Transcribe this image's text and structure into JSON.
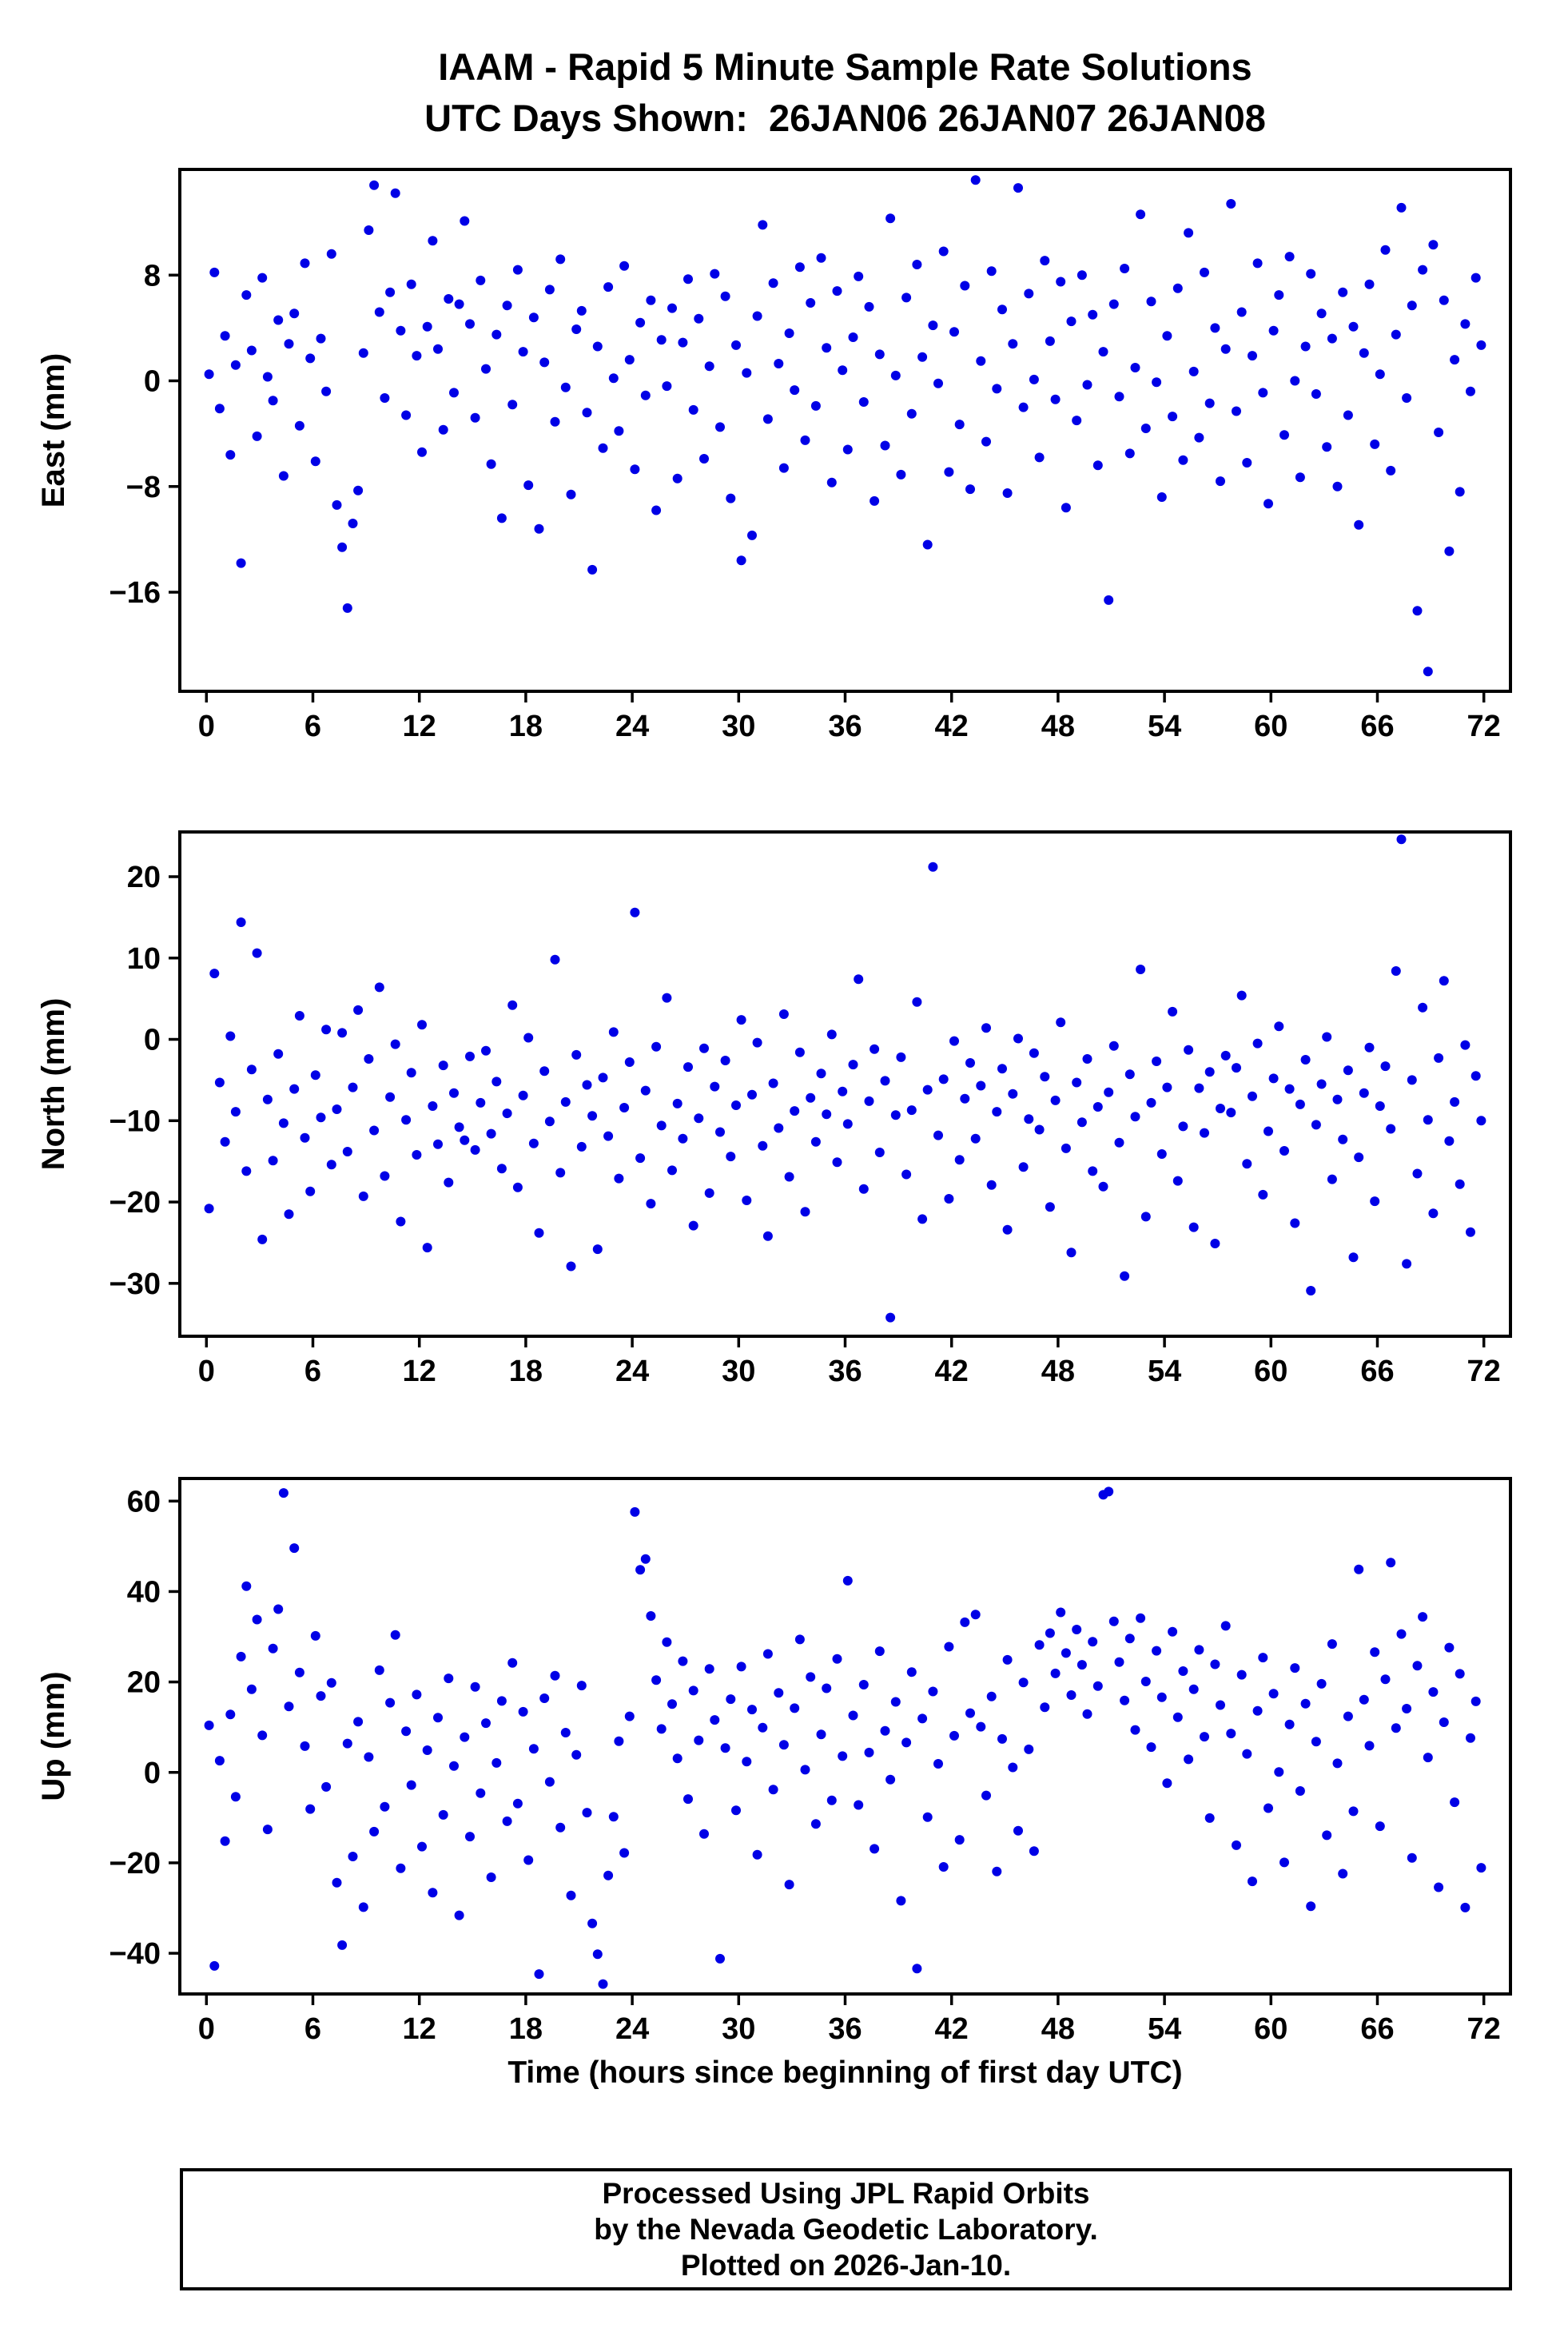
{
  "title": {
    "line1": "IAAM - Rapid 5 Minute Sample Rate Solutions",
    "line2": "UTC Days Shown:  26JAN06 26JAN07 26JAN08"
  },
  "xlabel": "Time (hours since beginning of first day UTC)",
  "footer": {
    "line1": "Processed Using JPL Rapid Orbits",
    "line2": "by the Nevada Geodetic Laboratory.",
    "line3": "Plotted on 2026-Jan-10."
  },
  "colors": {
    "marker": "#0000e6",
    "axis": "#000000",
    "background": "#ffffff"
  },
  "chart_data": [
    {
      "type": "scatter",
      "series_name": "East",
      "ylabel": "East (mm)",
      "ylim": [
        -23.5,
        16
      ],
      "yticks": [
        -16,
        -8,
        0,
        8
      ],
      "xlim": [
        -1.5,
        73.5
      ],
      "xticks": [
        0,
        6,
        12,
        18,
        24,
        30,
        36,
        42,
        48,
        54,
        60,
        66,
        72
      ],
      "grid": false,
      "legend": "none",
      "x_hours": {
        "start": 0.15,
        "step": 0.3,
        "count": 240
      },
      "y": [
        0.5,
        8.2,
        -2.1,
        3.4,
        -5.6,
        1.2,
        -13.8,
        6.5,
        2.3,
        -4.2,
        7.8,
        0.3,
        -1.5,
        4.6,
        -7.2,
        2.8,
        5.1,
        -3.4,
        8.9,
        1.7,
        -6.1,
        3.2,
        -0.8,
        9.6,
        -9.4,
        -12.6,
        -17.2,
        -10.8,
        -8.3,
        2.1,
        11.4,
        14.8,
        5.2,
        -1.3,
        6.7,
        14.2,
        3.8,
        -2.6,
        7.3,
        1.9,
        -5.4,
        4.1,
        10.6,
        2.4,
        -3.7,
        6.2,
        -0.9,
        5.8,
        12.1,
        4.3,
        -2.8,
        7.6,
        0.9,
        -6.3,
        3.5,
        -10.4,
        5.7,
        -1.8,
        8.4,
        2.2,
        -7.9,
        4.8,
        -11.2,
        1.4,
        6.9,
        -3.1,
        9.2,
        -0.5,
        -8.6,
        3.9,
        5.3,
        -2.4,
        -14.3,
        2.6,
        -5.1,
        7.1,
        0.2,
        -3.8,
        8.7,
        1.6,
        -6.7,
        4.4,
        -1.1,
        6.1,
        -9.8,
        3.1,
        -0.4,
        5.5,
        -7.4,
        2.9,
        7.7,
        -2.2,
        4.7,
        -5.9,
        1.1,
        8.1,
        -3.5,
        6.4,
        -8.9,
        2.7,
        -13.6,
        0.6,
        -11.7,
        4.9,
        11.8,
        -2.9,
        7.4,
        1.3,
        -6.6,
        3.6,
        -0.7,
        8.6,
        -4.5,
        5.9,
        -1.9,
        9.3,
        2.5,
        -7.7,
        6.8,
        0.8,
        -5.2,
        3.3,
        7.9,
        -1.6,
        5.6,
        -9.1,
        2.0,
        -4.9,
        12.3,
        0.4,
        -7.1,
        6.3,
        -2.5,
        8.8,
        1.8,
        -12.4,
        4.2,
        -0.2,
        9.8,
        -6.9,
        3.7,
        -3.3,
        7.2,
        -8.2,
        15.2,
        1.5,
        -4.6,
        8.3,
        -0.6,
        5.4,
        -8.5,
        2.8,
        14.6,
        -2.0,
        6.6,
        0.1,
        -5.8,
        9.1,
        3.0,
        -1.4,
        7.5,
        -9.6,
        4.5,
        -3.0,
        8.0,
        -0.3,
        5.0,
        -6.4,
        2.2,
        -16.6,
        5.8,
        -1.2,
        8.5,
        -5.5,
        1.0,
        12.6,
        -3.6,
        6.0,
        -0.1,
        -8.8,
        3.4,
        -2.7,
        7.0,
        -6.0,
        11.2,
        0.7,
        -4.3,
        8.2,
        -1.7,
        4.0,
        -7.6,
        2.4,
        13.4,
        -2.3,
        5.2,
        -6.2,
        1.9,
        8.9,
        -0.9,
        -9.3,
        3.8,
        6.5,
        -4.1,
        9.4,
        0.0,
        -7.3,
        2.6,
        8.1,
        -1.0,
        5.1,
        -5.0,
        3.2,
        -8.0,
        6.7,
        -2.6,
        4.1,
        -10.9,
        2.1,
        7.3,
        -4.8,
        0.5,
        9.9,
        -6.8,
        3.5,
        13.1,
        -1.3,
        5.7,
        -17.4,
        8.4,
        -22.0,
        10.3,
        -3.9,
        6.1,
        -12.9,
        1.6,
        -8.4,
        4.3,
        -0.8,
        7.8,
        2.7
      ]
    },
    {
      "type": "scatter",
      "series_name": "North",
      "ylabel": "North (mm)",
      "ylim": [
        -36.5,
        25.5
      ],
      "yticks": [
        -30,
        -20,
        -10,
        0,
        10,
        20
      ],
      "xlim": [
        -1.5,
        73.5
      ],
      "xticks": [
        0,
        6,
        12,
        18,
        24,
        30,
        36,
        42,
        48,
        54,
        60,
        66,
        72
      ],
      "grid": false,
      "legend": "none",
      "x_hours": {
        "start": 0.15,
        "step": 0.3,
        "count": 240
      },
      "y": [
        -20.8,
        8.1,
        -5.3,
        -12.6,
        0.4,
        -8.9,
        14.4,
        -16.2,
        -3.7,
        10.6,
        -24.6,
        -7.4,
        -14.9,
        -1.8,
        -10.3,
        -21.5,
        -6.1,
        2.9,
        -12.1,
        -18.7,
        -4.4,
        -9.6,
        1.2,
        -15.4,
        -8.6,
        0.8,
        -13.8,
        -5.9,
        3.6,
        -19.3,
        -2.4,
        -11.2,
        6.4,
        -16.8,
        -7.1,
        -0.6,
        -22.4,
        -9.9,
        -4.1,
        -14.2,
        1.8,
        -25.6,
        -8.2,
        -12.9,
        -3.2,
        -17.6,
        -6.6,
        -10.8,
        -12.4,
        -2.1,
        -13.6,
        -7.8,
        -1.4,
        -11.6,
        -5.2,
        -15.9,
        -9.1,
        4.2,
        -18.2,
        -6.9,
        0.2,
        -12.8,
        -23.8,
        -3.9,
        -10.1,
        9.8,
        -16.4,
        -7.7,
        -27.9,
        -1.9,
        -13.2,
        -5.6,
        -9.4,
        -25.8,
        -4.7,
        -11.9,
        0.9,
        -17.1,
        -8.4,
        -2.8,
        15.6,
        -14.6,
        -6.3,
        -20.2,
        -0.9,
        -10.6,
        5.1,
        -16.1,
        -7.9,
        -12.2,
        -3.4,
        -22.9,
        -9.7,
        -1.1,
        -18.9,
        -5.8,
        -11.4,
        -2.6,
        -14.4,
        -8.1,
        2.4,
        -19.8,
        -6.8,
        -0.4,
        -13.1,
        -24.2,
        -5.4,
        -10.9,
        3.1,
        -16.9,
        -8.8,
        -1.6,
        -21.2,
        -7.2,
        -12.6,
        -4.2,
        -9.2,
        0.6,
        -15.1,
        -6.4,
        -10.4,
        -3.1,
        7.4,
        -18.4,
        -7.6,
        -1.2,
        -13.9,
        -5.1,
        -34.2,
        -9.3,
        -2.2,
        -16.6,
        -8.7,
        4.6,
        -22.1,
        -6.2,
        21.2,
        -11.8,
        -4.9,
        -19.6,
        -0.2,
        -14.8,
        -7.3,
        -2.9,
        -12.2,
        -5.7,
        1.4,
        -17.9,
        -8.9,
        -3.6,
        -23.4,
        -6.7,
        0.1,
        -15.7,
        -9.8,
        -1.7,
        -11.1,
        -4.6,
        -20.6,
        -7.5,
        2.1,
        -13.4,
        -26.2,
        -5.3,
        -10.2,
        -2.4,
        -16.2,
        -8.3,
        -18.1,
        -6.5,
        -0.8,
        -12.7,
        -29.1,
        -4.3,
        -9.5,
        8.6,
        -21.8,
        -7.8,
        -2.7,
        -14.1,
        -5.9,
        3.4,
        -17.4,
        -10.7,
        -1.3,
        -23.1,
        -6.0,
        -11.5,
        -4.0,
        -25.1,
        -8.5,
        -2.0,
        -9.0,
        -3.5,
        5.4,
        -15.3,
        -7.0,
        -0.5,
        -19.1,
        -11.3,
        -4.8,
        1.6,
        -13.7,
        -6.1,
        -22.6,
        -8.0,
        -2.5,
        -30.9,
        -10.5,
        -5.5,
        0.3,
        -17.2,
        -7.4,
        -12.3,
        -3.8,
        -26.8,
        -14.5,
        -6.6,
        -1.0,
        -19.9,
        -8.2,
        -3.3,
        -11.0,
        8.4,
        24.6,
        -27.6,
        -5.0,
        -16.5,
        3.9,
        -9.9,
        -21.4,
        -2.3,
        7.2,
        -12.5,
        -7.7,
        -17.8,
        -0.7,
        -23.7,
        -4.5,
        -10.0
      ]
    },
    {
      "type": "scatter",
      "series_name": "Up",
      "ylabel": "Up (mm)",
      "ylim": [
        -49,
        65
      ],
      "yticks": [
        -40,
        -20,
        0,
        20,
        40,
        60
      ],
      "xlim": [
        -1.5,
        73.5
      ],
      "xticks": [
        0,
        6,
        12,
        18,
        24,
        30,
        36,
        42,
        48,
        54,
        60,
        66,
        72
      ],
      "grid": false,
      "legend": "none",
      "x_hours": {
        "start": 0.15,
        "step": 0.3,
        "count": 240
      },
      "y": [
        10.4,
        -42.8,
        2.6,
        -15.2,
        12.8,
        -5.4,
        25.6,
        41.2,
        18.4,
        33.8,
        8.2,
        -12.6,
        27.4,
        36.1,
        61.8,
        14.6,
        49.6,
        22.1,
        5.8,
        -8.1,
        30.2,
        16.9,
        -3.2,
        19.8,
        -24.4,
        -38.2,
        6.4,
        -18.6,
        11.2,
        -29.8,
        3.4,
        -13.1,
        22.6,
        -7.6,
        15.4,
        30.4,
        -21.2,
        9.1,
        -2.8,
        17.2,
        -16.4,
        4.9,
        -26.6,
        12.1,
        -9.4,
        20.8,
        1.4,
        -31.6,
        7.8,
        -14.2,
        18.9,
        -4.6,
        10.9,
        -23.2,
        2.1,
        15.8,
        -10.8,
        24.2,
        -6.9,
        13.4,
        -19.4,
        5.2,
        -44.6,
        16.4,
        -2.1,
        21.4,
        -12.2,
        8.8,
        -27.2,
        3.9,
        19.2,
        -8.9,
        -33.4,
        -40.2,
        -46.8,
        -22.8,
        -9.8,
        6.9,
        -17.8,
        12.4,
        57.6,
        44.8,
        47.2,
        34.6,
        20.4,
        9.6,
        28.8,
        15.1,
        3.1,
        24.6,
        -5.9,
        18.1,
        7.1,
        -13.6,
        22.9,
        11.6,
        -41.2,
        5.4,
        16.2,
        -8.4,
        23.4,
        2.4,
        13.9,
        -18.2,
        9.9,
        26.2,
        -3.8,
        17.6,
        6.1,
        -24.8,
        14.2,
        29.4,
        0.6,
        21.1,
        -11.4,
        8.4,
        18.6,
        -6.2,
        25.1,
        3.6,
        42.4,
        12.6,
        -7.2,
        19.4,
        4.4,
        -16.9,
        26.8,
        9.2,
        -1.6,
        15.6,
        -28.4,
        6.6,
        22.2,
        -43.4,
        11.9,
        -9.9,
        17.9,
        1.9,
        -20.9,
        27.8,
        8.1,
        -14.9,
        33.2,
        13.1,
        34.9,
        10.1,
        -5.1,
        16.8,
        -21.9,
        7.4,
        24.9,
        1.1,
        -12.9,
        19.9,
        5.1,
        -17.4,
        28.2,
        14.4,
        30.8,
        21.9,
        35.4,
        26.4,
        17.1,
        31.6,
        23.8,
        12.9,
        28.9,
        19.1,
        61.4,
        62.1,
        33.4,
        24.4,
        15.9,
        29.6,
        9.4,
        34.1,
        20.1,
        5.6,
        26.9,
        16.6,
        -2.4,
        31.1,
        12.2,
        22.4,
        2.9,
        18.4,
        27.1,
        7.9,
        -10.1,
        23.9,
        14.9,
        32.4,
        8.6,
        -16.1,
        21.6,
        4.1,
        -24.1,
        13.6,
        25.4,
        -7.9,
        17.4,
        0.1,
        -19.9,
        10.6,
        23.1,
        -4.1,
        15.2,
        -29.6,
        6.8,
        19.6,
        -13.9,
        28.4,
        2.0,
        -22.4,
        12.4,
        -8.6,
        44.9,
        16.1,
        5.9,
        26.6,
        -11.9,
        20.6,
        46.4,
        9.8,
        30.6,
        14.1,
        -18.9,
        23.6,
        34.4,
        3.3,
        17.8,
        -25.4,
        11.1,
        27.6,
        -6.6,
        21.8,
        -29.9,
        7.6,
        15.7,
        -21.1
      ]
    }
  ]
}
